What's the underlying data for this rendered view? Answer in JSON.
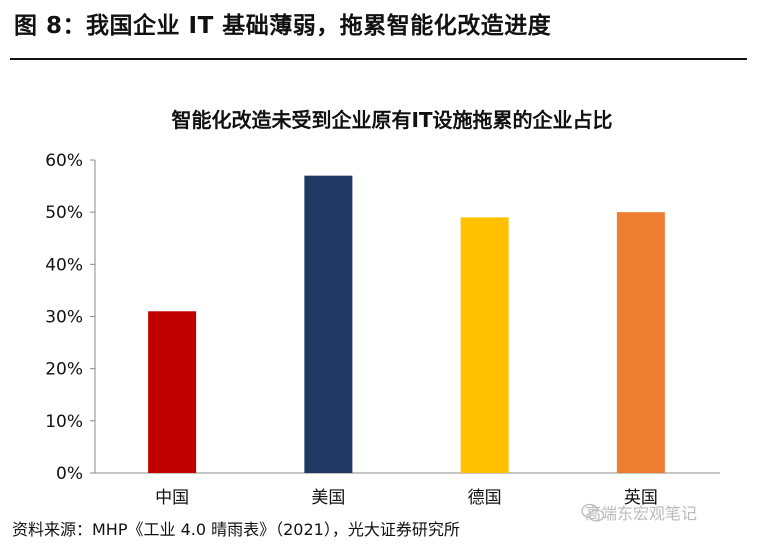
{
  "figure": {
    "title": "图 8：我国企业 IT 基础薄弱，拖累智能化改造进度",
    "source": "资料来源：MHP《工业 4.0 晴雨表》（2021），光大证券研究所",
    "watermark": "高端东宏观笔记"
  },
  "chart_data": {
    "type": "bar",
    "title": "智能化改造未受到企业原有IT设施拖累的企业占比",
    "categories": [
      "中国",
      "美国",
      "德国",
      "英国"
    ],
    "values": [
      31,
      57,
      49,
      50
    ],
    "colors": [
      "#c00000",
      "#1f3864",
      "#ffc000",
      "#ed7d31"
    ],
    "ylim": [
      0,
      60
    ],
    "yticks": [
      0,
      10,
      20,
      30,
      40,
      50,
      60
    ],
    "ytick_labels": [
      "0%",
      "10%",
      "20%",
      "30%",
      "40%",
      "50%",
      "60%"
    ],
    "xlabel": "",
    "ylabel": "",
    "grid": false,
    "legend": "none"
  }
}
